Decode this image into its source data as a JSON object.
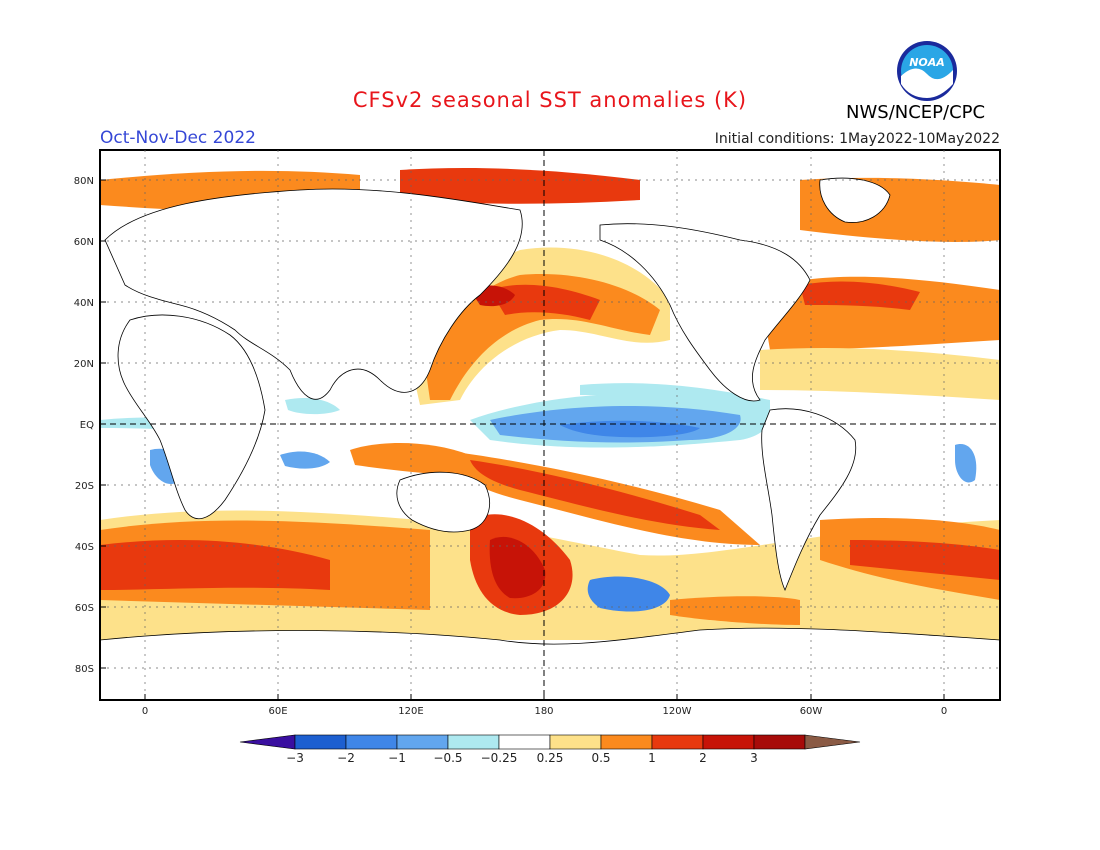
{
  "title": "CFSv2 seasonal SST anomalies (K)",
  "organization": "NWS/NCEP/CPC",
  "logo_text": "NOAA",
  "season": "Oct-Nov-Dec 2022",
  "initial_conditions": "Initial conditions: 1May2022-10May2022",
  "lat_ticks": [
    "80N",
    "60N",
    "40N",
    "20N",
    "EQ",
    "20S",
    "40S",
    "60S",
    "80S"
  ],
  "lon_ticks": [
    "0",
    "60E",
    "120E",
    "180",
    "120W",
    "60W",
    "0"
  ],
  "colorbar": {
    "labels": [
      "-3",
      "-2",
      "-1",
      "-0.5",
      "-0.25",
      "0.25",
      "0.5",
      "1",
      "2",
      "3"
    ],
    "colors": [
      "#3a0fa0",
      "#1d5fd0",
      "#3f86e8",
      "#62a6ee",
      "#aee9f0",
      "#ffffff",
      "#fde18a",
      "#fb8a1e",
      "#e8390e",
      "#c71307",
      "#a70b09",
      "#8a5a44"
    ]
  }
}
